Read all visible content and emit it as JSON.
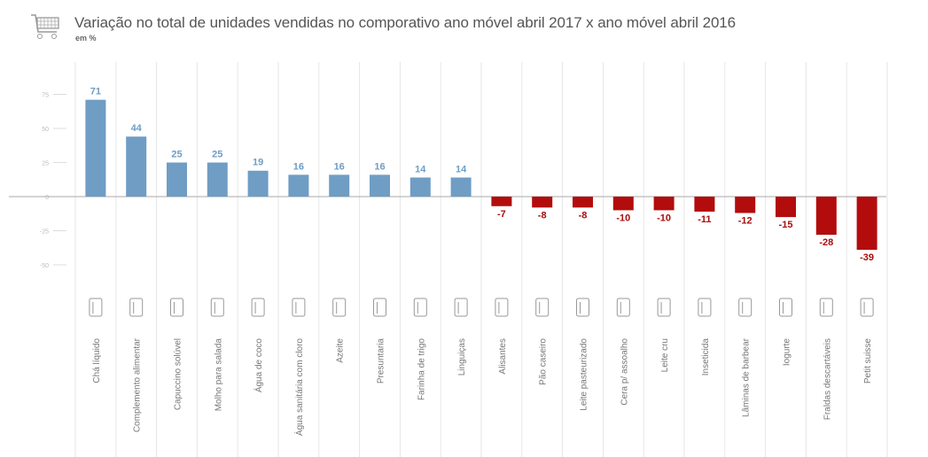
{
  "chart_data": {
    "type": "bar",
    "title": "Variação no total de unidades vendidas no comporativo ano móvel abril 2017 x ano móvel abril 2016",
    "subtitle": "em %",
    "xlabel": "",
    "ylabel": "",
    "ylim": [
      -65,
      80
    ],
    "yticks": [
      75,
      50,
      25,
      0,
      -25,
      -50
    ],
    "grid": false,
    "categories": [
      "Chá líquido",
      "Complemento alimentar",
      "Capuccino solúvel",
      "Molho para salada",
      "Água de coco",
      "Água sanitária com cloro",
      "Azeite",
      "Presuntaria",
      "Farinha de trigo",
      "Linguiças",
      "Alisantes",
      "Pão caseiro",
      "Leite pasteurizado",
      "Cera p/ assoalho",
      "Leite cru",
      "Inseticida",
      "Lâminas de barbear",
      "Iogurte",
      "Fraldas descartáveis",
      "Petit suisse"
    ],
    "values": [
      71,
      44,
      25,
      25,
      19,
      16,
      16,
      16,
      14,
      14,
      -7,
      -8,
      -8,
      -10,
      -10,
      -11,
      -12,
      -15,
      -28,
      -39
    ],
    "icons": [
      "carton-icon",
      "can-icon",
      "cup-icon",
      "bottles-icon",
      "coconut-icon",
      "bleach-icon",
      "oil-bottle-icon",
      "ham-icon",
      "flour-sack-icon",
      "sausage-icon",
      "jar-icon",
      "bread-icon",
      "milk-carton-icon",
      "floor-wax-icon",
      "milk-can-icon",
      "insecticide-icon",
      "razor-icon",
      "yogurt-icon",
      "diaper-icon",
      "pot-icon"
    ],
    "colors": {
      "positive": "#6f9dc4",
      "negative": "#b30c0c",
      "positive_label": "#6f9dc4",
      "negative_label": "#a80d0d"
    }
  }
}
